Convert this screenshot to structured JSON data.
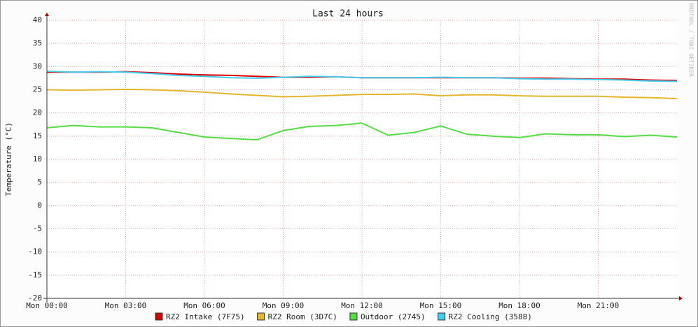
{
  "chart_data": {
    "type": "line",
    "title": "Last 24 hours",
    "y_label": "Temperature (°C)",
    "watermark": "RRDTOOL / TOBI OETIKER",
    "x": [
      0,
      1,
      2,
      3,
      4,
      5,
      6,
      7,
      8,
      9,
      10,
      11,
      12,
      13,
      14,
      15,
      16,
      17,
      18,
      19,
      20,
      21,
      22,
      23,
      24
    ],
    "xlim": [
      0,
      24
    ],
    "xticks": [
      {
        "value": 0,
        "label": "Mon 00:00"
      },
      {
        "value": 3,
        "label": "Mon 03:00"
      },
      {
        "value": 6,
        "label": "Mon 06:00"
      },
      {
        "value": 9,
        "label": "Mon 09:00"
      },
      {
        "value": 12,
        "label": "Mon 12:00"
      },
      {
        "value": 15,
        "label": "Mon 15:00"
      },
      {
        "value": 18,
        "label": "Mon 18:00"
      },
      {
        "value": 21,
        "label": "Mon 21:00"
      }
    ],
    "ylim": [
      -20,
      40
    ],
    "yticks": [
      -20,
      -15,
      -10,
      -5,
      0,
      5,
      10,
      15,
      20,
      25,
      30,
      35,
      40
    ],
    "grid": true,
    "series": [
      {
        "name": "RZ2 Intake (7F75)",
        "color": "#dd0000",
        "values": [
          28.8,
          28.8,
          28.8,
          28.9,
          28.7,
          28.4,
          28.2,
          28.1,
          27.9,
          27.7,
          27.7,
          27.8,
          27.6,
          27.6,
          27.6,
          27.6,
          27.6,
          27.6,
          27.5,
          27.5,
          27.4,
          27.3,
          27.3,
          27.1,
          27.0
        ]
      },
      {
        "name": "RZ2 Room (3D7C)",
        "color": "#e6b52e",
        "values": [
          25.0,
          24.9,
          25.0,
          25.1,
          25.0,
          24.8,
          24.5,
          24.1,
          23.8,
          23.5,
          23.6,
          23.8,
          24.0,
          24.0,
          24.1,
          23.7,
          23.9,
          23.9,
          23.7,
          23.6,
          23.6,
          23.6,
          23.4,
          23.3,
          23.1
        ]
      },
      {
        "name": "Outdoor (2745)",
        "color": "#55dd44",
        "values": [
          16.8,
          17.3,
          17.0,
          17.0,
          16.8,
          15.8,
          14.8,
          14.5,
          14.2,
          16.2,
          17.1,
          17.3,
          17.8,
          15.2,
          15.8,
          17.2,
          15.4,
          15.0,
          14.7,
          15.5,
          15.3,
          15.3,
          14.9,
          15.2,
          14.8
        ]
      },
      {
        "name": "RZ2 Cooling (3588)",
        "color": "#44ccee",
        "values": [
          29.0,
          28.8,
          28.9,
          28.8,
          28.5,
          28.1,
          27.9,
          27.6,
          27.5,
          27.7,
          27.9,
          27.8,
          27.6,
          27.6,
          27.6,
          27.7,
          27.6,
          27.6,
          27.4,
          27.3,
          27.3,
          27.2,
          27.1,
          26.9,
          26.8
        ]
      }
    ]
  }
}
